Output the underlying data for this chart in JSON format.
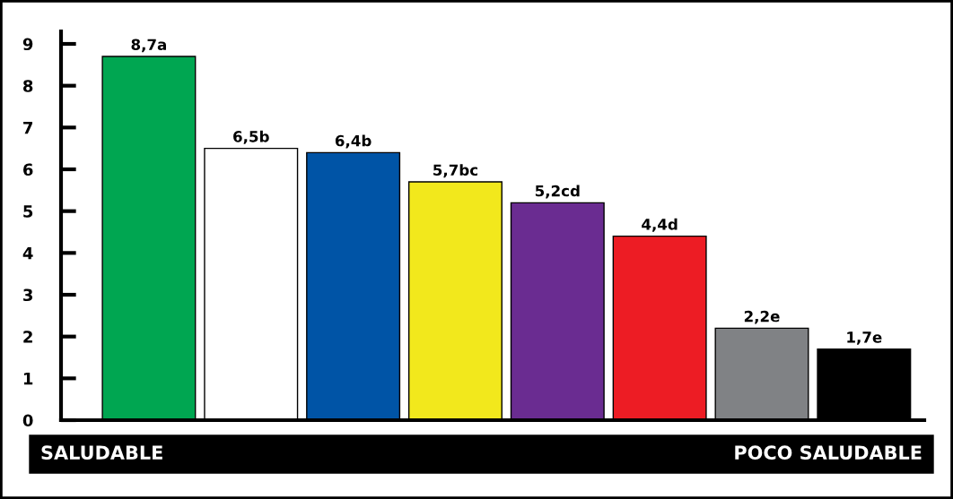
{
  "chart_data": {
    "type": "bar",
    "categories": [
      null,
      null,
      null,
      null,
      null,
      null,
      null,
      null
    ],
    "values": [
      8.7,
      6.5,
      6.4,
      5.7,
      5.2,
      4.4,
      2.2,
      1.7
    ],
    "colors": [
      "#00a651",
      "#ffffff",
      "#0054a6",
      "#f2e81c",
      "#6a2c91",
      "#ed1c24",
      "#808285",
      "#000000"
    ],
    "value_labels": [
      "8,7a",
      "6,5b",
      "6,4b",
      "5,7bc",
      "5,2cd",
      "4,4d",
      "2,2e",
      "1,7e"
    ],
    "ylim": [
      0,
      9.3
    ],
    "yticks": [
      0,
      1,
      2,
      3,
      4,
      5,
      6,
      7,
      8,
      9
    ],
    "grid": false,
    "annotations": [
      "SALUDABLE",
      "POCO SALUDABLE"
    ]
  }
}
